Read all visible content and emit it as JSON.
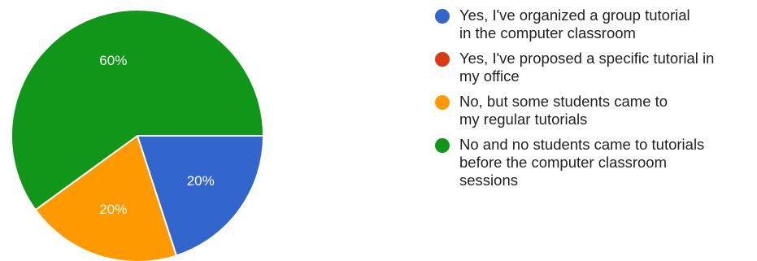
{
  "chart_data": {
    "type": "pie",
    "categories": [
      "Yes, I've organized a group tutorial\nin the computer classroom",
      "Yes, I've proposed a specific tutorial in\nmy office",
      "No, but some students came to\nmy regular tutorials",
      "No and no students came to tutorials\nbefore the computer classroom\nsessions"
    ],
    "values": [
      20,
      0,
      20,
      60
    ],
    "data_labels": [
      "20%",
      "",
      "20%",
      "60%"
    ],
    "colors": [
      "#3366cc",
      "#dc3912",
      "#ff9900",
      "#109618"
    ],
    "legend_position": "right"
  }
}
